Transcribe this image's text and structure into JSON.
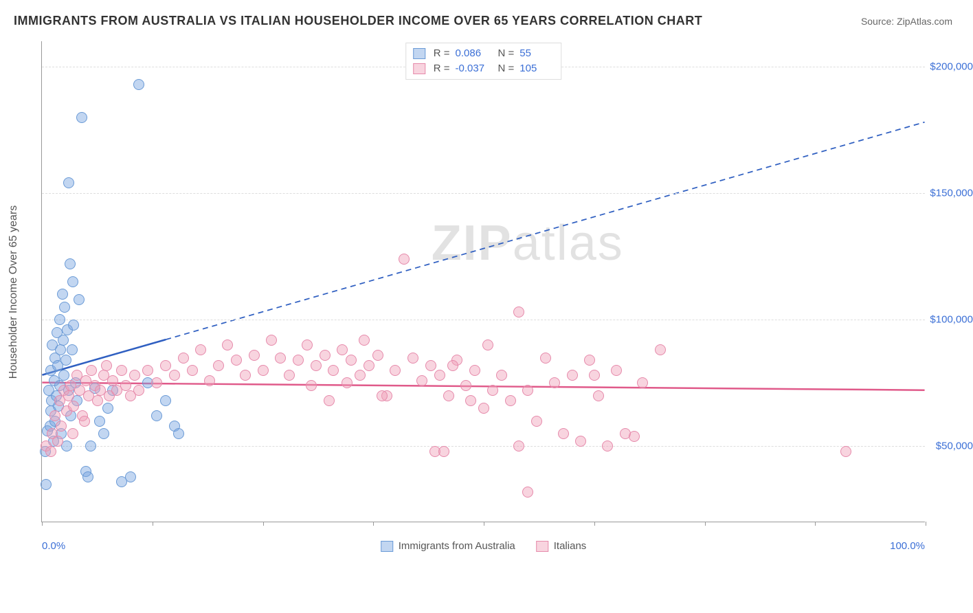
{
  "header": {
    "title": "IMMIGRANTS FROM AUSTRALIA VS ITALIAN HOUSEHOLDER INCOME OVER 65 YEARS CORRELATION CHART",
    "source_prefix": "Source: ",
    "source_name": "ZipAtlas.com"
  },
  "watermark": {
    "part1": "ZIP",
    "part2": "atlas"
  },
  "chart": {
    "type": "scatter",
    "ylabel": "Householder Income Over 65 years",
    "label_fontsize": 16,
    "xlim": [
      0,
      100
    ],
    "ylim": [
      20000,
      210000
    ],
    "x_ticks_pct": [
      0,
      12.5,
      25,
      37.5,
      50,
      62.5,
      75,
      87.5,
      100
    ],
    "x_min_label": "0.0%",
    "x_max_label": "100.0%",
    "y_gridlines": [
      50000,
      100000,
      150000,
      200000
    ],
    "y_tick_labels": [
      "$50,000",
      "$100,000",
      "$150,000",
      "$200,000"
    ],
    "tick_color": "#3b6fd6",
    "grid_color": "#dddddd",
    "axis_color": "#999999",
    "background_color": "#ffffff",
    "marker_radius": 8,
    "series": [
      {
        "name": "Immigrants from Australia",
        "series_key": "blue",
        "fill_color": "rgba(120,165,225,0.45)",
        "stroke_color": "#6a9ad6",
        "r_value": "0.086",
        "n_value": "55",
        "trend": {
          "y_intercept": 78000,
          "slope": 1000,
          "solid_until_x": 14,
          "color": "#2f5fc1",
          "width": 2.5
        },
        "points": [
          [
            0.4,
            48000
          ],
          [
            0.5,
            35000
          ],
          [
            0.6,
            56000
          ],
          [
            0.8,
            72000
          ],
          [
            0.9,
            58000
          ],
          [
            1.0,
            64000
          ],
          [
            1.0,
            80000
          ],
          [
            1.1,
            68000
          ],
          [
            1.2,
            90000
          ],
          [
            1.3,
            52000
          ],
          [
            1.4,
            76000
          ],
          [
            1.5,
            85000
          ],
          [
            1.5,
            60000
          ],
          [
            1.6,
            70000
          ],
          [
            1.7,
            95000
          ],
          [
            1.8,
            82000
          ],
          [
            1.9,
            66000
          ],
          [
            2.0,
            100000
          ],
          [
            2.0,
            74000
          ],
          [
            2.1,
            88000
          ],
          [
            2.2,
            55000
          ],
          [
            2.3,
            110000
          ],
          [
            2.4,
            92000
          ],
          [
            2.5,
            78000
          ],
          [
            2.6,
            105000
          ],
          [
            2.7,
            84000
          ],
          [
            2.8,
            50000
          ],
          [
            2.9,
            96000
          ],
          [
            3.0,
            154000
          ],
          [
            3.0,
            72000
          ],
          [
            3.2,
            122000
          ],
          [
            3.4,
            88000
          ],
          [
            3.5,
            115000
          ],
          [
            3.6,
            98000
          ],
          [
            3.8,
            75000
          ],
          [
            4.0,
            68000
          ],
          [
            4.5,
            180000
          ],
          [
            5.0,
            40000
          ],
          [
            5.2,
            38000
          ],
          [
            5.5,
            50000
          ],
          [
            6.0,
            73000
          ],
          [
            6.5,
            60000
          ],
          [
            7.0,
            55000
          ],
          [
            7.5,
            65000
          ],
          [
            8.0,
            72000
          ],
          [
            9.0,
            36000
          ],
          [
            10.0,
            38000
          ],
          [
            11.0,
            193000
          ],
          [
            12.0,
            75000
          ],
          [
            13.0,
            62000
          ],
          [
            14.0,
            68000
          ],
          [
            15.0,
            58000
          ],
          [
            15.5,
            55000
          ],
          [
            3.3,
            62000
          ],
          [
            4.2,
            108000
          ]
        ]
      },
      {
        "name": "Italians",
        "series_key": "pink",
        "fill_color": "rgba(240,160,185,0.45)",
        "stroke_color": "#e68aab",
        "r_value": "-0.037",
        "n_value": "105",
        "trend": {
          "y_intercept": 75000,
          "slope": -30,
          "solid_until_x": 100,
          "color": "#e05a8a",
          "width": 2.5
        },
        "points": [
          [
            0.5,
            50000
          ],
          [
            1.0,
            48000
          ],
          [
            1.2,
            55000
          ],
          [
            1.5,
            62000
          ],
          [
            1.8,
            52000
          ],
          [
            2.0,
            68000
          ],
          [
            2.2,
            58000
          ],
          [
            2.5,
            72000
          ],
          [
            2.8,
            64000
          ],
          [
            3.0,
            70000
          ],
          [
            3.3,
            74000
          ],
          [
            3.6,
            66000
          ],
          [
            4.0,
            78000
          ],
          [
            4.3,
            72000
          ],
          [
            4.6,
            62000
          ],
          [
            5.0,
            76000
          ],
          [
            5.3,
            70000
          ],
          [
            5.6,
            80000
          ],
          [
            6.0,
            74000
          ],
          [
            6.3,
            68000
          ],
          [
            6.6,
            72000
          ],
          [
            7.0,
            78000
          ],
          [
            7.3,
            82000
          ],
          [
            7.6,
            70000
          ],
          [
            8.0,
            76000
          ],
          [
            8.5,
            72000
          ],
          [
            9.0,
            80000
          ],
          [
            9.5,
            74000
          ],
          [
            10.0,
            70000
          ],
          [
            10.5,
            78000
          ],
          [
            11.0,
            72000
          ],
          [
            12.0,
            80000
          ],
          [
            13.0,
            75000
          ],
          [
            14.0,
            82000
          ],
          [
            15.0,
            78000
          ],
          [
            16.0,
            85000
          ],
          [
            17.0,
            80000
          ],
          [
            18.0,
            88000
          ],
          [
            19.0,
            76000
          ],
          [
            20.0,
            82000
          ],
          [
            21.0,
            90000
          ],
          [
            22.0,
            84000
          ],
          [
            23.0,
            78000
          ],
          [
            24.0,
            86000
          ],
          [
            25.0,
            80000
          ],
          [
            26.0,
            92000
          ],
          [
            27.0,
            85000
          ],
          [
            28.0,
            78000
          ],
          [
            29.0,
            84000
          ],
          [
            30.0,
            90000
          ],
          [
            31.0,
            82000
          ],
          [
            32.0,
            86000
          ],
          [
            33.0,
            80000
          ],
          [
            34.0,
            88000
          ],
          [
            35.0,
            84000
          ],
          [
            36.0,
            78000
          ],
          [
            37.0,
            82000
          ],
          [
            38.0,
            86000
          ],
          [
            39.0,
            70000
          ],
          [
            40.0,
            80000
          ],
          [
            41.0,
            124000
          ],
          [
            42.0,
            85000
          ],
          [
            43.0,
            76000
          ],
          [
            44.0,
            82000
          ],
          [
            45.0,
            78000
          ],
          [
            46.0,
            70000
          ],
          [
            47.0,
            84000
          ],
          [
            48.0,
            74000
          ],
          [
            49.0,
            80000
          ],
          [
            50.0,
            65000
          ],
          [
            51.0,
            72000
          ],
          [
            52.0,
            78000
          ],
          [
            53.0,
            68000
          ],
          [
            54.0,
            103000
          ],
          [
            55.0,
            72000
          ],
          [
            56.0,
            60000
          ],
          [
            57.0,
            85000
          ],
          [
            58.0,
            75000
          ],
          [
            59.0,
            55000
          ],
          [
            60.0,
            78000
          ],
          [
            61.0,
            52000
          ],
          [
            62.0,
            84000
          ],
          [
            63.0,
            70000
          ],
          [
            64.0,
            50000
          ],
          [
            65.0,
            80000
          ],
          [
            44.5,
            48000
          ],
          [
            45.5,
            48000
          ],
          [
            54.0,
            50000
          ],
          [
            55.0,
            32000
          ],
          [
            66.0,
            55000
          ],
          [
            67.0,
            54000
          ],
          [
            68.0,
            75000
          ],
          [
            70.0,
            88000
          ],
          [
            62.5,
            78000
          ],
          [
            50.5,
            90000
          ],
          [
            48.5,
            68000
          ],
          [
            46.5,
            82000
          ],
          [
            38.5,
            70000
          ],
          [
            36.5,
            92000
          ],
          [
            34.5,
            75000
          ],
          [
            32.5,
            68000
          ],
          [
            30.5,
            74000
          ],
          [
            91.0,
            48000
          ],
          [
            3.5,
            55000
          ],
          [
            4.8,
            60000
          ]
        ]
      }
    ]
  },
  "ui": {
    "r_label": "R =",
    "n_label": "N ="
  }
}
